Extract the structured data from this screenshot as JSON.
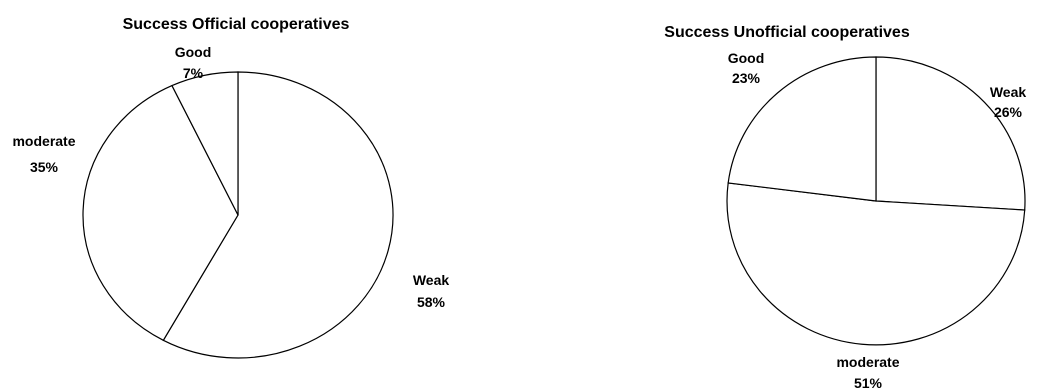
{
  "chart_data": [
    {
      "type": "pie",
      "title": "Success Official cooperatives",
      "categories": [
        "Weak",
        "moderate",
        "Good"
      ],
      "values": [
        58,
        35,
        7
      ],
      "value_labels": [
        "58%",
        "35%",
        "7%"
      ],
      "slice_color": "#ffffff",
      "stroke_color": "#000000",
      "legend": "none"
    },
    {
      "type": "pie",
      "title": "Success Unofficial cooperatives",
      "categories": [
        "Weak",
        "moderate",
        "Good"
      ],
      "values": [
        26,
        51,
        23
      ],
      "value_labels": [
        "26%",
        "51%",
        "23%"
      ],
      "slice_color": "#ffffff",
      "stroke_color": "#000000",
      "legend": "none"
    }
  ]
}
